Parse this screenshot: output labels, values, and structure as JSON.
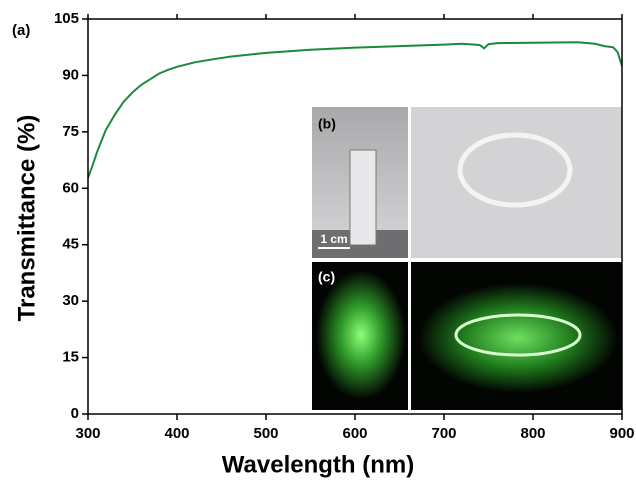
{
  "chart_data": {
    "type": "line",
    "panel_label": "(a)",
    "x_label": "Wavelength  (nm)",
    "y_label": "Transmittance  (%)",
    "x": [
      300,
      305,
      310,
      315,
      320,
      330,
      340,
      350,
      360,
      370,
      380,
      390,
      400,
      420,
      440,
      460,
      480,
      500,
      550,
      600,
      650,
      700,
      720,
      740,
      745,
      750,
      760,
      800,
      850,
      870,
      880,
      890,
      895,
      900
    ],
    "values": [
      62.8,
      66,
      69.5,
      72.5,
      75.5,
      79.5,
      83,
      85.5,
      87.5,
      89,
      90.5,
      91.5,
      92.3,
      93.5,
      94.3,
      95,
      95.5,
      96,
      96.8,
      97.4,
      97.8,
      98.2,
      98.4,
      98.1,
      97.2,
      98.3,
      98.6,
      98.7,
      98.8,
      98.4,
      97.8,
      97.5,
      96.2,
      92.5
    ],
    "color": "#1b8a3c",
    "xlim": [
      300,
      900
    ],
    "xticks": [
      300,
      400,
      500,
      600,
      700,
      800,
      900
    ],
    "ylim": [
      0,
      105
    ],
    "yticks": [
      0,
      15,
      30,
      45,
      60,
      75,
      90,
      105
    ],
    "inset_labels": {
      "b": "(b)",
      "c": "(c)",
      "scale": "1 cm"
    }
  }
}
